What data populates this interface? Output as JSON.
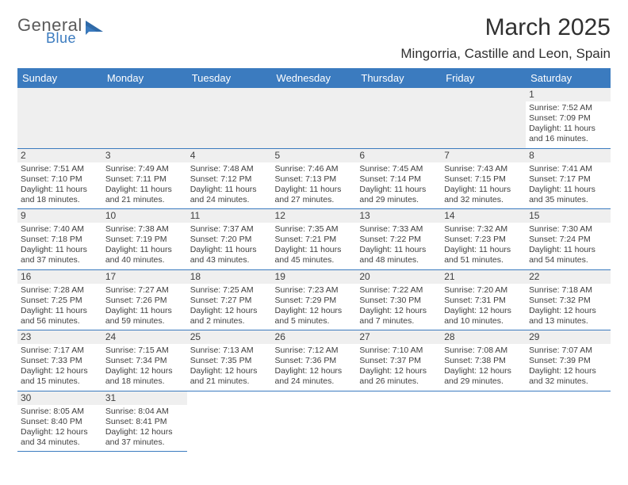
{
  "logo": {
    "general": "General",
    "blue": "Blue"
  },
  "header": {
    "month_title": "March 2025",
    "location": "Mingorria, Castille and Leon, Spain"
  },
  "weekdays": [
    "Sunday",
    "Monday",
    "Tuesday",
    "Wednesday",
    "Thursday",
    "Friday",
    "Saturday"
  ],
  "colors": {
    "header_bg": "#3b7bbf",
    "header_fg": "#ffffff",
    "daynum_bg": "#efefef",
    "border": "#3b7bbf",
    "logo_gray": "#5a5a5a",
    "logo_blue": "#3b7bbf"
  },
  "weeks": [
    [
      null,
      null,
      null,
      null,
      null,
      null,
      {
        "n": "1",
        "sr": "Sunrise: 7:52 AM",
        "ss": "Sunset: 7:09 PM",
        "dl": "Daylight: 11 hours and 16 minutes."
      }
    ],
    [
      {
        "n": "2",
        "sr": "Sunrise: 7:51 AM",
        "ss": "Sunset: 7:10 PM",
        "dl": "Daylight: 11 hours and 18 minutes."
      },
      {
        "n": "3",
        "sr": "Sunrise: 7:49 AM",
        "ss": "Sunset: 7:11 PM",
        "dl": "Daylight: 11 hours and 21 minutes."
      },
      {
        "n": "4",
        "sr": "Sunrise: 7:48 AM",
        "ss": "Sunset: 7:12 PM",
        "dl": "Daylight: 11 hours and 24 minutes."
      },
      {
        "n": "5",
        "sr": "Sunrise: 7:46 AM",
        "ss": "Sunset: 7:13 PM",
        "dl": "Daylight: 11 hours and 27 minutes."
      },
      {
        "n": "6",
        "sr": "Sunrise: 7:45 AM",
        "ss": "Sunset: 7:14 PM",
        "dl": "Daylight: 11 hours and 29 minutes."
      },
      {
        "n": "7",
        "sr": "Sunrise: 7:43 AM",
        "ss": "Sunset: 7:15 PM",
        "dl": "Daylight: 11 hours and 32 minutes."
      },
      {
        "n": "8",
        "sr": "Sunrise: 7:41 AM",
        "ss": "Sunset: 7:17 PM",
        "dl": "Daylight: 11 hours and 35 minutes."
      }
    ],
    [
      {
        "n": "9",
        "sr": "Sunrise: 7:40 AM",
        "ss": "Sunset: 7:18 PM",
        "dl": "Daylight: 11 hours and 37 minutes."
      },
      {
        "n": "10",
        "sr": "Sunrise: 7:38 AM",
        "ss": "Sunset: 7:19 PM",
        "dl": "Daylight: 11 hours and 40 minutes."
      },
      {
        "n": "11",
        "sr": "Sunrise: 7:37 AM",
        "ss": "Sunset: 7:20 PM",
        "dl": "Daylight: 11 hours and 43 minutes."
      },
      {
        "n": "12",
        "sr": "Sunrise: 7:35 AM",
        "ss": "Sunset: 7:21 PM",
        "dl": "Daylight: 11 hours and 45 minutes."
      },
      {
        "n": "13",
        "sr": "Sunrise: 7:33 AM",
        "ss": "Sunset: 7:22 PM",
        "dl": "Daylight: 11 hours and 48 minutes."
      },
      {
        "n": "14",
        "sr": "Sunrise: 7:32 AM",
        "ss": "Sunset: 7:23 PM",
        "dl": "Daylight: 11 hours and 51 minutes."
      },
      {
        "n": "15",
        "sr": "Sunrise: 7:30 AM",
        "ss": "Sunset: 7:24 PM",
        "dl": "Daylight: 11 hours and 54 minutes."
      }
    ],
    [
      {
        "n": "16",
        "sr": "Sunrise: 7:28 AM",
        "ss": "Sunset: 7:25 PM",
        "dl": "Daylight: 11 hours and 56 minutes."
      },
      {
        "n": "17",
        "sr": "Sunrise: 7:27 AM",
        "ss": "Sunset: 7:26 PM",
        "dl": "Daylight: 11 hours and 59 minutes."
      },
      {
        "n": "18",
        "sr": "Sunrise: 7:25 AM",
        "ss": "Sunset: 7:27 PM",
        "dl": "Daylight: 12 hours and 2 minutes."
      },
      {
        "n": "19",
        "sr": "Sunrise: 7:23 AM",
        "ss": "Sunset: 7:29 PM",
        "dl": "Daylight: 12 hours and 5 minutes."
      },
      {
        "n": "20",
        "sr": "Sunrise: 7:22 AM",
        "ss": "Sunset: 7:30 PM",
        "dl": "Daylight: 12 hours and 7 minutes."
      },
      {
        "n": "21",
        "sr": "Sunrise: 7:20 AM",
        "ss": "Sunset: 7:31 PM",
        "dl": "Daylight: 12 hours and 10 minutes."
      },
      {
        "n": "22",
        "sr": "Sunrise: 7:18 AM",
        "ss": "Sunset: 7:32 PM",
        "dl": "Daylight: 12 hours and 13 minutes."
      }
    ],
    [
      {
        "n": "23",
        "sr": "Sunrise: 7:17 AM",
        "ss": "Sunset: 7:33 PM",
        "dl": "Daylight: 12 hours and 15 minutes."
      },
      {
        "n": "24",
        "sr": "Sunrise: 7:15 AM",
        "ss": "Sunset: 7:34 PM",
        "dl": "Daylight: 12 hours and 18 minutes."
      },
      {
        "n": "25",
        "sr": "Sunrise: 7:13 AM",
        "ss": "Sunset: 7:35 PM",
        "dl": "Daylight: 12 hours and 21 minutes."
      },
      {
        "n": "26",
        "sr": "Sunrise: 7:12 AM",
        "ss": "Sunset: 7:36 PM",
        "dl": "Daylight: 12 hours and 24 minutes."
      },
      {
        "n": "27",
        "sr": "Sunrise: 7:10 AM",
        "ss": "Sunset: 7:37 PM",
        "dl": "Daylight: 12 hours and 26 minutes."
      },
      {
        "n": "28",
        "sr": "Sunrise: 7:08 AM",
        "ss": "Sunset: 7:38 PM",
        "dl": "Daylight: 12 hours and 29 minutes."
      },
      {
        "n": "29",
        "sr": "Sunrise: 7:07 AM",
        "ss": "Sunset: 7:39 PM",
        "dl": "Daylight: 12 hours and 32 minutes."
      }
    ],
    [
      {
        "n": "30",
        "sr": "Sunrise: 8:05 AM",
        "ss": "Sunset: 8:40 PM",
        "dl": "Daylight: 12 hours and 34 minutes."
      },
      {
        "n": "31",
        "sr": "Sunrise: 8:04 AM",
        "ss": "Sunset: 8:41 PM",
        "dl": "Daylight: 12 hours and 37 minutes."
      },
      null,
      null,
      null,
      null,
      null
    ]
  ]
}
